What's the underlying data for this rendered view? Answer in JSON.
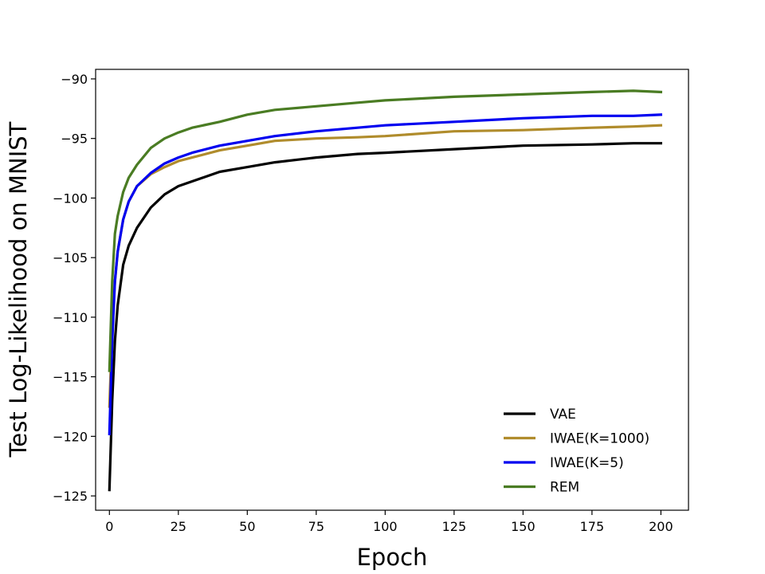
{
  "chart_data": {
    "type": "line",
    "title": "",
    "xlabel": "Epoch",
    "ylabel": "Test Log-Likelihood on MNIST",
    "xlim": [
      -5,
      210
    ],
    "ylim": [
      -126.2,
      -89.2
    ],
    "xticks": [
      0,
      25,
      50,
      75,
      100,
      125,
      150,
      175,
      200
    ],
    "yticks": [
      -125,
      -120,
      -115,
      -110,
      -105,
      -100,
      -95,
      -90
    ],
    "grid": false,
    "legend_position": "lower-right",
    "series": [
      {
        "name": "VAE",
        "color": "#000000",
        "x": [
          0,
          1,
          2,
          3,
          5,
          7,
          10,
          15,
          20,
          25,
          30,
          40,
          50,
          60,
          75,
          90,
          100,
          125,
          150,
          175,
          190,
          200
        ],
        "y": [
          -124.5,
          -117.0,
          -112.0,
          -109.0,
          -105.6,
          -104.0,
          -102.5,
          -100.8,
          -99.7,
          -99.0,
          -98.6,
          -97.8,
          -97.4,
          -97.0,
          -96.6,
          -96.3,
          -96.2,
          -95.9,
          -95.6,
          -95.5,
          -95.4,
          -95.4
        ]
      },
      {
        "name": "IWAE(K=1000)",
        "color": "#b08c2c",
        "x": [
          0,
          1,
          2,
          3,
          5,
          7,
          10,
          15,
          20,
          25,
          30,
          40,
          50,
          60,
          75,
          90,
          100,
          125,
          150,
          175,
          190,
          200
        ],
        "y": [
          -117.5,
          -111.0,
          -107.0,
          -104.5,
          -101.8,
          -100.3,
          -99.0,
          -98.0,
          -97.4,
          -96.9,
          -96.6,
          -96.0,
          -95.6,
          -95.2,
          -95.0,
          -94.9,
          -94.8,
          -94.4,
          -94.3,
          -94.1,
          -94.0,
          -93.9
        ]
      },
      {
        "name": "IWAE(K=5)",
        "color": "#0000f0",
        "x": [
          0,
          1,
          2,
          3,
          5,
          7,
          10,
          15,
          20,
          25,
          30,
          40,
          50,
          60,
          75,
          90,
          100,
          125,
          150,
          175,
          190,
          200
        ],
        "y": [
          -119.8,
          -112.0,
          -107.0,
          -104.5,
          -101.8,
          -100.3,
          -99.0,
          -97.9,
          -97.1,
          -96.6,
          -96.2,
          -95.6,
          -95.2,
          -94.8,
          -94.4,
          -94.1,
          -93.9,
          -93.6,
          -93.3,
          -93.1,
          -93.1,
          -93.0
        ]
      },
      {
        "name": "REM",
        "color": "#4a7c23",
        "x": [
          0,
          1,
          2,
          3,
          5,
          7,
          10,
          15,
          20,
          25,
          30,
          40,
          50,
          60,
          75,
          90,
          100,
          125,
          150,
          175,
          190,
          200
        ],
        "y": [
          -114.5,
          -107.0,
          -103.0,
          -101.5,
          -99.5,
          -98.3,
          -97.2,
          -95.8,
          -95.0,
          -94.5,
          -94.1,
          -93.6,
          -93.0,
          -92.6,
          -92.3,
          -92.0,
          -91.8,
          -91.5,
          -91.3,
          -91.1,
          -91.0,
          -91.1
        ]
      }
    ]
  }
}
